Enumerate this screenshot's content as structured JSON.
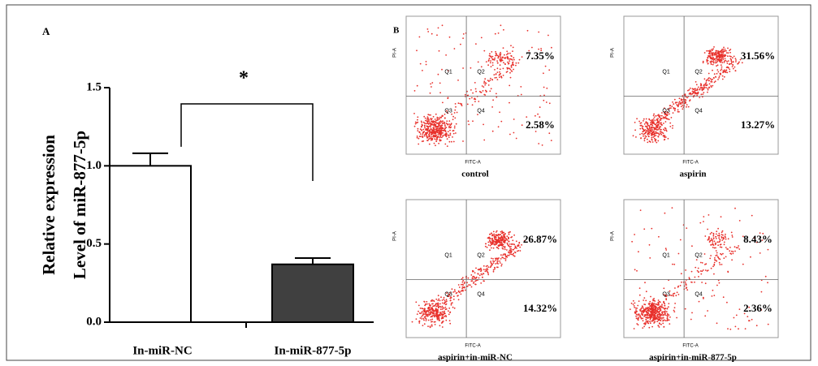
{
  "chart_data": {
    "type": "bar",
    "panel_label": "A",
    "ylabel": [
      "Relative expression",
      "Level of miR-877-5p"
    ],
    "categories": [
      "In-miR-NC",
      "In-miR-877-5p"
    ],
    "values": [
      1.0,
      0.37
    ],
    "errors": [
      0.08,
      0.04
    ],
    "colors": [
      "#ffffff",
      "#404040"
    ],
    "ylim": [
      0,
      1.5
    ],
    "yticks": [
      {
        "value": 0,
        "label": "0.0"
      },
      0.5,
      {
        "value": 1,
        "label": "1.0"
      },
      1.5
    ],
    "annotation": "*"
  },
  "flow_cytometry": {
    "panel_label": "B",
    "x_label": "FITC-A",
    "y_label": "PI-A",
    "quadrants": [
      "Q1",
      "Q2",
      "Q3",
      "Q4"
    ],
    "panels": [
      {
        "title": "control",
        "upper_right": "7.35%",
        "lower_right": "2.58%"
      },
      {
        "title": "aspirin",
        "upper_right": "31.56%",
        "lower_right": "13.27%"
      },
      {
        "title": "aspirin+in-miR-NC",
        "upper_right": "26.87%",
        "lower_right": "14.32%"
      },
      {
        "title": "aspirin+in-miR-877-5p",
        "upper_right": "8.43%",
        "lower_right": "2.36%"
      }
    ]
  }
}
